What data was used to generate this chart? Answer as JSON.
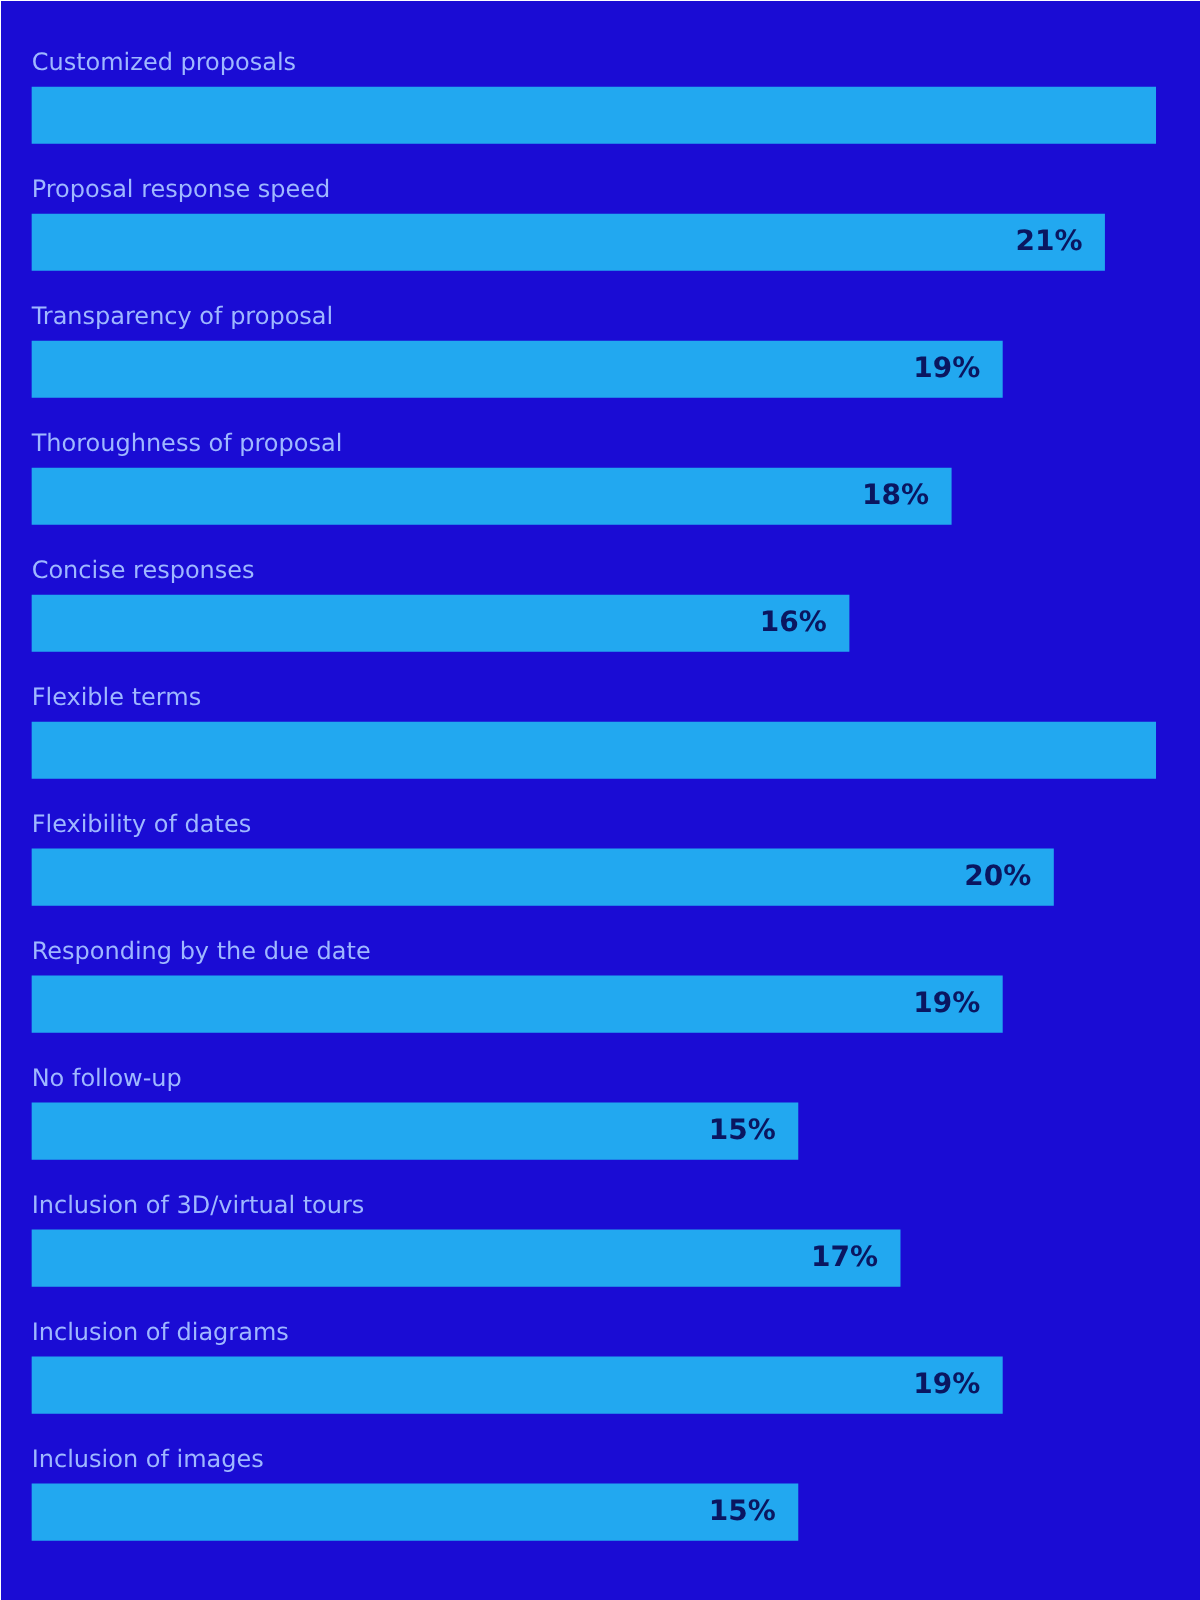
{
  "chart_data": {
    "type": "bar",
    "orientation": "horizontal",
    "categories": [
      "Customized proposals",
      "Proposal response speed",
      "Transparency of proposal",
      "Thoroughness of proposal",
      "Concise responses",
      "Flexible terms",
      "Flexibility of dates",
      "Responding by the due date",
      "No follow-up",
      "Inclusion of 3D/virtual tours",
      "Inclusion of diagrams",
      "Inclusion of images"
    ],
    "values": [
      22,
      21,
      19,
      18,
      16,
      22,
      20,
      19,
      15,
      17,
      19,
      15
    ],
    "value_labels": [
      null,
      "21%",
      "19%",
      "18%",
      "16%",
      null,
      "20%",
      "19%",
      "15%",
      "17%",
      "19%",
      "15%"
    ],
    "color": "#22a8f0"
  }
}
